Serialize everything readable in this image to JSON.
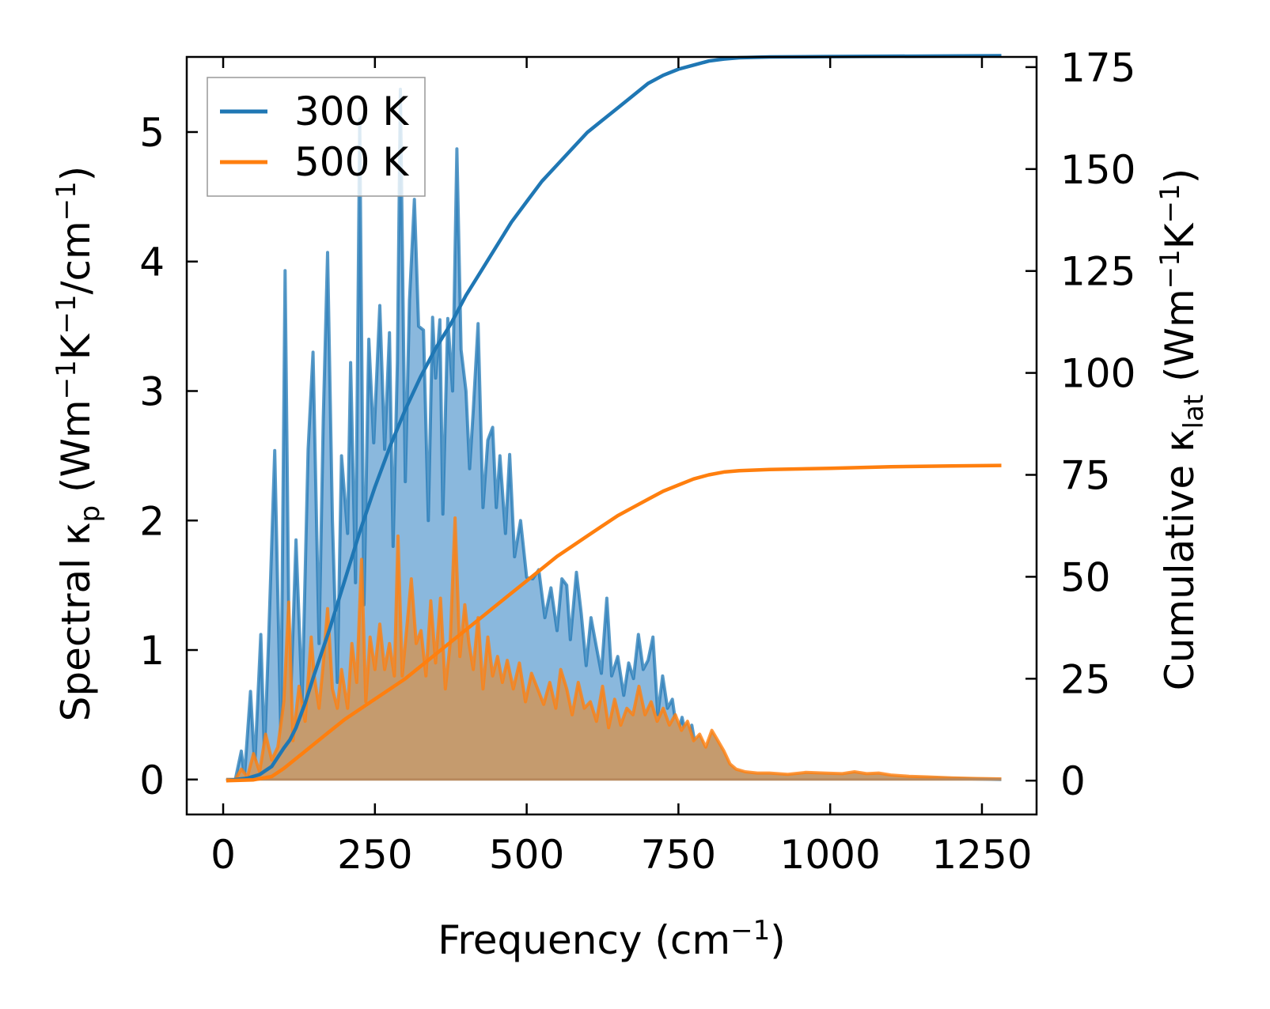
{
  "chart_data": {
    "type": "area",
    "xlabel": "Frequency (cm",
    "xlabel_sup": "−1",
    "xlabel_end": ")",
    "ylabel_left": {
      "parts": [
        "Spectral κ",
        "p",
        " (Wm",
        "−1",
        "K",
        "−1",
        "/cm",
        "−1",
        ")"
      ],
      "styles": [
        "n",
        "sub",
        "n",
        "sup",
        "n",
        "sup",
        "n",
        "sup",
        "n"
      ]
    },
    "ylabel_right": {
      "parts": [
        "Cumulative κ",
        "lat",
        " (Wm",
        "−1",
        "K",
        "−1",
        ")"
      ],
      "styles": [
        "n",
        "sub",
        "n",
        "sup",
        "n",
        "sup",
        "n"
      ]
    },
    "xlim": [
      -60,
      1340
    ],
    "ylim_left": [
      -0.27,
      5.58
    ],
    "ylim_right": [
      -8.3,
      177.5
    ],
    "x_ticks": [
      0,
      250,
      500,
      750,
      1000,
      1250
    ],
    "x_tick_labels": [
      "0",
      "250",
      "500",
      "750",
      "1000",
      "1250"
    ],
    "y_left_ticks": [
      0,
      1,
      2,
      3,
      4,
      5
    ],
    "y_left_tick_labels": [
      "0",
      "1",
      "2",
      "3",
      "4",
      "5"
    ],
    "y_right_ticks": [
      0,
      25,
      50,
      75,
      100,
      125,
      150,
      175
    ],
    "y_right_tick_labels": [
      "0",
      "25",
      "50",
      "75",
      "100",
      "125",
      "150",
      "175"
    ],
    "legend": {
      "position": "top-left",
      "entries": [
        "300 K",
        "500 K"
      ]
    },
    "colors": {
      "s300": "#1f77b4",
      "s500": "#ff7f0e",
      "fill300": "#8ab8dd",
      "fill500": "#c59b6e"
    },
    "series": [
      {
        "name": "300 K",
        "spectral_points": [
          [
            5,
            0
          ],
          [
            20,
            0
          ],
          [
            30,
            0.22
          ],
          [
            35,
            0.02
          ],
          [
            45,
            0.68
          ],
          [
            52,
            0.1
          ],
          [
            62,
            1.12
          ],
          [
            68,
            0.2
          ],
          [
            75,
            1.1
          ],
          [
            85,
            2.54
          ],
          [
            95,
            0.35
          ],
          [
            102,
            3.93
          ],
          [
            110,
            0.45
          ],
          [
            120,
            1.85
          ],
          [
            130,
            0.6
          ],
          [
            140,
            2.55
          ],
          [
            148,
            3.3
          ],
          [
            158,
            1.05
          ],
          [
            165,
            2.8
          ],
          [
            172,
            4.07
          ],
          [
            180,
            2.0
          ],
          [
            188,
            0.75
          ],
          [
            195,
            2.5
          ],
          [
            205,
            1.9
          ],
          [
            210,
            3.22
          ],
          [
            218,
            1.52
          ],
          [
            225,
            5.1
          ],
          [
            232,
            1.35
          ],
          [
            240,
            3.4
          ],
          [
            248,
            2.6
          ],
          [
            258,
            3.66
          ],
          [
            266,
            2.55
          ],
          [
            274,
            3.45
          ],
          [
            280,
            1.8
          ],
          [
            287,
            3.22
          ],
          [
            292,
            5.33
          ],
          [
            300,
            2.3
          ],
          [
            307,
            3.7
          ],
          [
            315,
            4.48
          ],
          [
            322,
            3.5
          ],
          [
            330,
            3.47
          ],
          [
            338,
            2.0
          ],
          [
            345,
            3.57
          ],
          [
            350,
            3.1
          ],
          [
            357,
            3.55
          ],
          [
            362,
            2.05
          ],
          [
            370,
            3.56
          ],
          [
            378,
            3.0
          ],
          [
            385,
            4.87
          ],
          [
            392,
            3.32
          ],
          [
            400,
            3.0
          ],
          [
            406,
            2.4
          ],
          [
            412,
            2.85
          ],
          [
            420,
            3.52
          ],
          [
            428,
            2.1
          ],
          [
            436,
            2.62
          ],
          [
            444,
            2.72
          ],
          [
            450,
            2.1
          ],
          [
            456,
            2.5
          ],
          [
            465,
            1.9
          ],
          [
            472,
            2.51
          ],
          [
            480,
            1.72
          ],
          [
            490,
            2.0
          ],
          [
            500,
            1.56
          ],
          [
            510,
            1.55
          ],
          [
            520,
            1.62
          ],
          [
            530,
            1.25
          ],
          [
            540,
            1.48
          ],
          [
            550,
            1.15
          ],
          [
            558,
            1.55
          ],
          [
            566,
            1.5
          ],
          [
            572,
            1.08
          ],
          [
            582,
            1.6
          ],
          [
            590,
            1.28
          ],
          [
            598,
            0.88
          ],
          [
            606,
            1.25
          ],
          [
            615,
            1.02
          ],
          [
            623,
            0.82
          ],
          [
            632,
            1.4
          ],
          [
            640,
            0.8
          ],
          [
            650,
            0.95
          ],
          [
            660,
            0.65
          ],
          [
            668,
            0.9
          ],
          [
            676,
            0.78
          ],
          [
            684,
            1.12
          ],
          [
            692,
            0.85
          ],
          [
            700,
            0.92
          ],
          [
            708,
            1.1
          ],
          [
            716,
            0.5
          ],
          [
            724,
            0.8
          ],
          [
            732,
            0.55
          ],
          [
            740,
            0.62
          ],
          [
            748,
            0.35
          ],
          [
            756,
            0.48
          ],
          [
            764,
            0.3
          ],
          [
            772,
            0.42
          ],
          [
            780,
            0.2
          ],
          [
            788,
            0.3
          ],
          [
            796,
            0.1
          ],
          [
            806,
            0.18
          ],
          [
            820,
            0.12
          ],
          [
            835,
            0.06
          ],
          [
            850,
            0.05
          ],
          [
            870,
            0.03
          ],
          [
            900,
            0.03
          ],
          [
            930,
            0.025
          ],
          [
            960,
            0.02
          ],
          [
            1000,
            0.02
          ],
          [
            1050,
            0.018
          ],
          [
            1100,
            0.015
          ],
          [
            1150,
            0.012
          ],
          [
            1200,
            0.008
          ],
          [
            1282,
            0
          ]
        ],
        "cumulative_points": [
          [
            5,
            0
          ],
          [
            40,
            0.6
          ],
          [
            60,
            1.5
          ],
          [
            80,
            3.5
          ],
          [
            100,
            8
          ],
          [
            110,
            10
          ],
          [
            120,
            13
          ],
          [
            135,
            19
          ],
          [
            150,
            26
          ],
          [
            175,
            37
          ],
          [
            200,
            49
          ],
          [
            225,
            61
          ],
          [
            250,
            72
          ],
          [
            275,
            82
          ],
          [
            300,
            91
          ],
          [
            325,
            99
          ],
          [
            350,
            106
          ],
          [
            375,
            112
          ],
          [
            400,
            119
          ],
          [
            425,
            125
          ],
          [
            450,
            131
          ],
          [
            475,
            137
          ],
          [
            500,
            142
          ],
          [
            525,
            147
          ],
          [
            550,
            151
          ],
          [
            575,
            155
          ],
          [
            600,
            159
          ],
          [
            625,
            162
          ],
          [
            650,
            165
          ],
          [
            675,
            168
          ],
          [
            700,
            171
          ],
          [
            725,
            173
          ],
          [
            750,
            174.5
          ],
          [
            775,
            175.5
          ],
          [
            800,
            176.5
          ],
          [
            825,
            177
          ],
          [
            850,
            177.3
          ],
          [
            900,
            177.5
          ],
          [
            1000,
            177.6
          ],
          [
            1282,
            177.8
          ]
        ]
      },
      {
        "name": "500 K",
        "spectral_points": [
          [
            5,
            0
          ],
          [
            20,
            0
          ],
          [
            30,
            0.08
          ],
          [
            40,
            0.02
          ],
          [
            50,
            0.2
          ],
          [
            60,
            0.06
          ],
          [
            70,
            0.35
          ],
          [
            80,
            0.15
          ],
          [
            90,
            0.25
          ],
          [
            100,
            0.6
          ],
          [
            108,
            1.37
          ],
          [
            115,
            0.3
          ],
          [
            125,
            0.72
          ],
          [
            135,
            0.45
          ],
          [
            145,
            1.1
          ],
          [
            150,
            0.8
          ],
          [
            158,
            0.55
          ],
          [
            165,
            0.9
          ],
          [
            172,
            1.32
          ],
          [
            180,
            0.7
          ],
          [
            188,
            0.55
          ],
          [
            195,
            0.85
          ],
          [
            205,
            0.55
          ],
          [
            212,
            1.05
          ],
          [
            220,
            0.75
          ],
          [
            228,
            1.7
          ],
          [
            235,
            0.6
          ],
          [
            242,
            1.1
          ],
          [
            250,
            0.85
          ],
          [
            258,
            1.2
          ],
          [
            266,
            0.85
          ],
          [
            274,
            1.05
          ],
          [
            282,
            0.8
          ],
          [
            288,
            1.88
          ],
          [
            295,
            0.8
          ],
          [
            303,
            1.2
          ],
          [
            310,
            1.55
          ],
          [
            318,
            1.05
          ],
          [
            326,
            1.15
          ],
          [
            334,
            0.8
          ],
          [
            342,
            1.38
          ],
          [
            350,
            0.9
          ],
          [
            358,
            1.4
          ],
          [
            366,
            0.7
          ],
          [
            374,
            1.05
          ],
          [
            382,
            2.02
          ],
          [
            390,
            0.95
          ],
          [
            398,
            1.35
          ],
          [
            405,
            1.05
          ],
          [
            412,
            0.85
          ],
          [
            420,
            1.25
          ],
          [
            428,
            0.7
          ],
          [
            436,
            1.1
          ],
          [
            444,
            0.8
          ],
          [
            452,
            0.95
          ],
          [
            460,
            0.75
          ],
          [
            468,
            0.92
          ],
          [
            478,
            0.7
          ],
          [
            488,
            0.9
          ],
          [
            498,
            0.6
          ],
          [
            508,
            0.82
          ],
          [
            518,
            0.7
          ],
          [
            528,
            0.58
          ],
          [
            538,
            0.75
          ],
          [
            548,
            0.55
          ],
          [
            556,
            0.85
          ],
          [
            566,
            0.7
          ],
          [
            575,
            0.5
          ],
          [
            585,
            0.75
          ],
          [
            595,
            0.55
          ],
          [
            605,
            0.6
          ],
          [
            615,
            0.45
          ],
          [
            625,
            0.72
          ],
          [
            635,
            0.4
          ],
          [
            645,
            0.62
          ],
          [
            655,
            0.42
          ],
          [
            665,
            0.55
          ],
          [
            675,
            0.5
          ],
          [
            685,
            0.72
          ],
          [
            695,
            0.5
          ],
          [
            705,
            0.6
          ],
          [
            715,
            0.45
          ],
          [
            725,
            0.55
          ],
          [
            735,
            0.42
          ],
          [
            745,
            0.5
          ],
          [
            755,
            0.38
          ],
          [
            765,
            0.45
          ],
          [
            775,
            0.3
          ],
          [
            785,
            0.35
          ],
          [
            795,
            0.25
          ],
          [
            805,
            0.38
          ],
          [
            815,
            0.3
          ],
          [
            825,
            0.22
          ],
          [
            835,
            0.12
          ],
          [
            845,
            0.08
          ],
          [
            860,
            0.06
          ],
          [
            880,
            0.05
          ],
          [
            900,
            0.05
          ],
          [
            930,
            0.04
          ],
          [
            960,
            0.055
          ],
          [
            990,
            0.05
          ],
          [
            1020,
            0.045
          ],
          [
            1040,
            0.06
          ],
          [
            1060,
            0.045
          ],
          [
            1080,
            0.05
          ],
          [
            1100,
            0.035
          ],
          [
            1130,
            0.025
          ],
          [
            1160,
            0.02
          ],
          [
            1200,
            0.012
          ],
          [
            1240,
            0.008
          ],
          [
            1282,
            0.005
          ]
        ],
        "cumulative_points": [
          [
            5,
            0
          ],
          [
            50,
            0.2
          ],
          [
            80,
            1
          ],
          [
            100,
            3
          ],
          [
            125,
            6
          ],
          [
            150,
            9
          ],
          [
            175,
            12
          ],
          [
            200,
            15
          ],
          [
            225,
            17.5
          ],
          [
            250,
            20
          ],
          [
            275,
            22.5
          ],
          [
            300,
            25
          ],
          [
            325,
            28
          ],
          [
            350,
            31
          ],
          [
            375,
            34
          ],
          [
            400,
            37
          ],
          [
            425,
            40
          ],
          [
            450,
            43
          ],
          [
            475,
            46
          ],
          [
            500,
            49
          ],
          [
            525,
            52
          ],
          [
            550,
            55
          ],
          [
            575,
            57.5
          ],
          [
            600,
            60
          ],
          [
            625,
            62.5
          ],
          [
            650,
            65
          ],
          [
            675,
            67
          ],
          [
            700,
            69
          ],
          [
            725,
            71
          ],
          [
            750,
            72.5
          ],
          [
            775,
            74
          ],
          [
            800,
            75
          ],
          [
            825,
            75.7
          ],
          [
            850,
            76
          ],
          [
            900,
            76.3
          ],
          [
            1000,
            76.6
          ],
          [
            1100,
            77
          ],
          [
            1200,
            77.2
          ],
          [
            1282,
            77.3
          ]
        ]
      }
    ]
  }
}
